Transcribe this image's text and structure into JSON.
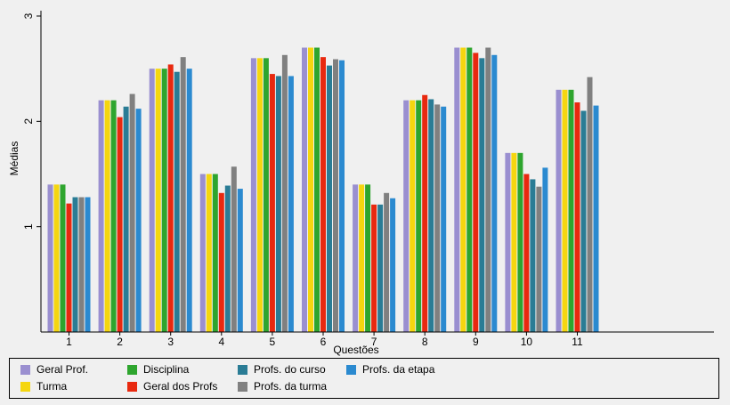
{
  "chart_data": {
    "type": "bar",
    "title": "",
    "xlabel": "Questões",
    "ylabel": "Médias",
    "ylim": [
      0,
      3
    ],
    "yticks": [
      1,
      2,
      3
    ],
    "categories": [
      "1",
      "2",
      "3",
      "4",
      "5",
      "6",
      "7",
      "8",
      "9",
      "10",
      "11"
    ],
    "series": [
      {
        "name": "Geral Prof.",
        "color": "#9a8fd0",
        "values": [
          1.4,
          2.2,
          2.5,
          1.5,
          2.6,
          2.7,
          1.4,
          2.2,
          2.7,
          1.7,
          2.3
        ]
      },
      {
        "name": "Turma",
        "color": "#f5d60f",
        "values": [
          1.4,
          2.2,
          2.5,
          1.5,
          2.6,
          2.7,
          1.4,
          2.2,
          2.7,
          1.7,
          2.3
        ]
      },
      {
        "name": "Disciplina",
        "color": "#2ea52e",
        "values": [
          1.4,
          2.2,
          2.5,
          1.5,
          2.6,
          2.7,
          1.4,
          2.2,
          2.7,
          1.7,
          2.3
        ]
      },
      {
        "name": "Geral dos Profs",
        "color": "#e8290f",
        "values": [
          1.22,
          2.04,
          2.54,
          1.32,
          2.45,
          2.61,
          1.21,
          2.25,
          2.65,
          1.5,
          2.18
        ]
      },
      {
        "name": "Profs. do curso",
        "color": "#2a7c95",
        "values": [
          1.28,
          2.14,
          2.47,
          1.39,
          2.43,
          2.53,
          1.21,
          2.21,
          2.6,
          1.45,
          2.1
        ]
      },
      {
        "name": "Profs. da turma",
        "color": "#808080",
        "values": [
          1.28,
          2.26,
          2.61,
          1.57,
          2.63,
          2.59,
          1.32,
          2.16,
          2.7,
          1.38,
          2.42
        ]
      },
      {
        "name": "Profs. da etapa",
        "color": "#2b8ad0",
        "values": [
          1.28,
          2.12,
          2.5,
          1.36,
          2.43,
          2.58,
          1.27,
          2.14,
          2.63,
          1.56,
          2.15
        ]
      }
    ],
    "legend_position": "bottom",
    "grid": false
  }
}
